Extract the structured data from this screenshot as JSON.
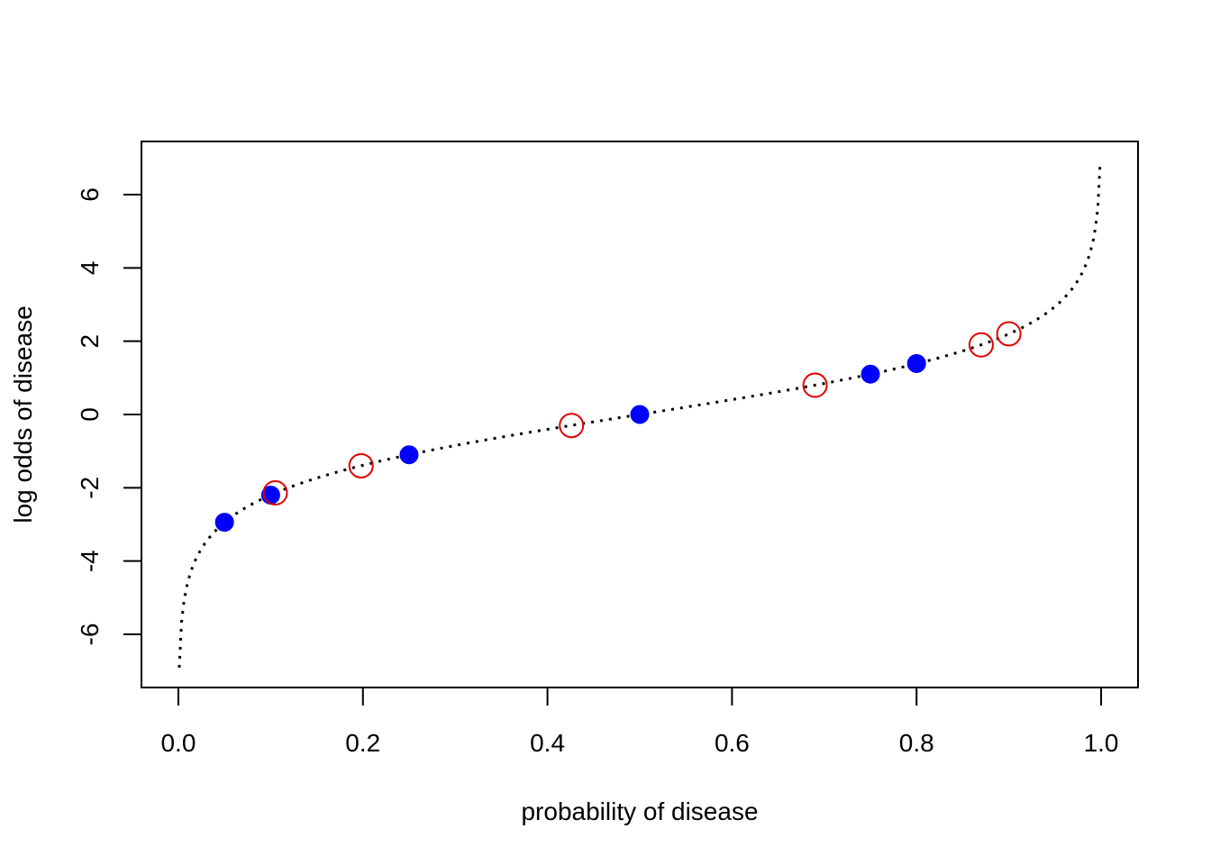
{
  "chart_data": {
    "type": "scatter",
    "title": "",
    "xlabel": "probability of disease",
    "ylabel": "log odds of disease",
    "xlim": [
      -0.04,
      1.04
    ],
    "ylim": [
      -7.45,
      7.45
    ],
    "xticks": [
      0.0,
      0.2,
      0.4,
      0.6,
      0.8,
      1.0
    ],
    "xtick_labels": [
      "0.0",
      "0.2",
      "0.4",
      "0.6",
      "0.8",
      "1.0"
    ],
    "yticks": [
      -6,
      -4,
      -2,
      0,
      2,
      4,
      6
    ],
    "ytick_labels": [
      "-6",
      "-4",
      "-2",
      "0",
      "2",
      "4",
      "6"
    ],
    "grid": false,
    "legend": "none",
    "curve": {
      "function": "logit",
      "x_range": [
        0.001,
        0.999
      ],
      "style": "dotted",
      "color": "#000000"
    },
    "series": [
      {
        "marker": "filled-circle",
        "color": "#0000FF",
        "points": [
          {
            "x": 0.05,
            "y": -2.94
          },
          {
            "x": 0.1,
            "y": -2.2
          },
          {
            "x": 0.25,
            "y": -1.1
          },
          {
            "x": 0.5,
            "y": 0.0
          },
          {
            "x": 0.75,
            "y": 1.1
          },
          {
            "x": 0.8,
            "y": 1.39
          }
        ]
      },
      {
        "marker": "open-circle",
        "color": "#E00000",
        "points": [
          {
            "x": 0.105,
            "y": -2.14
          },
          {
            "x": 0.198,
            "y": -1.4
          },
          {
            "x": 0.426,
            "y": -0.3
          },
          {
            "x": 0.69,
            "y": 0.8
          },
          {
            "x": 0.87,
            "y": 1.9
          },
          {
            "x": 0.9,
            "y": 2.2
          }
        ]
      }
    ]
  }
}
